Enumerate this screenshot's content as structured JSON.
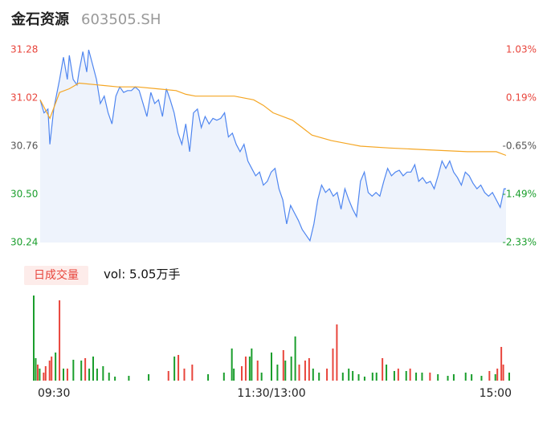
{
  "header": {
    "title": "金石资源",
    "code": "603505.SH"
  },
  "chart_data": [
    {
      "type": "line",
      "ylim": [
        30.24,
        31.28
      ],
      "yticks": [
        31.28,
        31.02,
        30.76,
        {
          "value": 30.5,
          "label": "30.50"
        },
        30.24
      ],
      "y2lim": [
        -2.33,
        1.03
      ],
      "y2ticks": [
        {
          "value": 1.03,
          "label": "1.03%"
        },
        {
          "value": 0.19,
          "label": "0.19%"
        },
        {
          "value": -0.65,
          "label": "-0.65%"
        },
        {
          "value": -1.49,
          "label": "-1.49%"
        },
        {
          "value": -2.33,
          "label": "-2.33%"
        }
      ],
      "tick_colors": [
        "#e8453c",
        "#e8453c",
        "#555555",
        "#1a9e2c",
        "#1a9e2c"
      ],
      "xlim": [
        0,
        240
      ],
      "area_color": "#eef3fc",
      "series": [
        {
          "color": "#4f86f0",
          "x": [
            0,
            2,
            4,
            5,
            7,
            10,
            12,
            14,
            15,
            17,
            19,
            20,
            22,
            24,
            25,
            27,
            29,
            31,
            33,
            35,
            37,
            39,
            41,
            43,
            45,
            47,
            49,
            51,
            53,
            55,
            57,
            59,
            61,
            63,
            65,
            67,
            69,
            71,
            73,
            75,
            77,
            79,
            81,
            83,
            85,
            87,
            89,
            91,
            93,
            95,
            97,
            99,
            101,
            103,
            105,
            107,
            109,
            111,
            113,
            115,
            117,
            119,
            121,
            123,
            125,
            127,
            129,
            131,
            133,
            135,
            137,
            139,
            141,
            143,
            145,
            147,
            149,
            151,
            153,
            155,
            157,
            159,
            161,
            163,
            165,
            167,
            169,
            171,
            173,
            175,
            177,
            179,
            181,
            183,
            185,
            187,
            189,
            191,
            193,
            195,
            197,
            199,
            201,
            203,
            205,
            207,
            209,
            211,
            213,
            215,
            217,
            219,
            221,
            223,
            225,
            227,
            229,
            231,
            233,
            235,
            237,
            239,
            240
          ],
          "values": [
            31.01,
            30.94,
            30.96,
            30.77,
            30.96,
            31.12,
            31.24,
            31.12,
            31.25,
            31.12,
            31.09,
            31.16,
            31.27,
            31.16,
            31.28,
            31.2,
            31.12,
            30.99,
            31.03,
            30.94,
            30.88,
            31.03,
            31.08,
            31.05,
            31.06,
            31.06,
            31.08,
            31.06,
            30.99,
            30.92,
            31.05,
            30.99,
            31.01,
            30.92,
            31.07,
            31.01,
            30.94,
            30.83,
            30.77,
            30.88,
            30.73,
            30.94,
            30.96,
            30.86,
            30.92,
            30.88,
            30.91,
            30.9,
            30.91,
            30.94,
            30.81,
            30.83,
            30.77,
            30.73,
            30.77,
            30.68,
            30.64,
            30.6,
            30.62,
            30.55,
            30.57,
            30.62,
            30.64,
            30.53,
            30.47,
            30.34,
            30.44,
            30.4,
            30.36,
            30.31,
            30.28,
            30.25,
            30.34,
            30.47,
            30.55,
            30.51,
            30.53,
            30.49,
            30.51,
            30.42,
            30.53,
            30.47,
            30.42,
            30.38,
            30.57,
            30.62,
            30.51,
            30.49,
            30.51,
            30.49,
            30.57,
            30.64,
            30.6,
            30.62,
            30.63,
            30.6,
            30.62,
            30.62,
            30.66,
            30.57,
            30.59,
            30.56,
            30.57,
            30.53,
            30.6,
            30.68,
            30.64,
            30.68,
            30.62,
            30.59,
            30.55,
            30.62,
            30.6,
            30.56,
            30.53,
            30.55,
            30.51,
            30.49,
            30.51,
            30.47,
            30.43,
            30.53,
            30.53
          ]
        },
        {
          "color": "#f5a623",
          "x": [
            0,
            5,
            10,
            15,
            20,
            30,
            40,
            50,
            60,
            70,
            75,
            80,
            100,
            110,
            115,
            120,
            130,
            135,
            140,
            150,
            160,
            165,
            180,
            200,
            220,
            235,
            240
          ],
          "values": [
            31.01,
            30.91,
            31.05,
            31.07,
            31.1,
            31.09,
            31.08,
            31.08,
            31.07,
            31.06,
            31.04,
            31.03,
            31.03,
            31.01,
            30.98,
            30.94,
            30.9,
            30.86,
            30.82,
            30.79,
            30.77,
            30.76,
            30.75,
            30.74,
            30.73,
            30.73,
            30.71
          ]
        }
      ]
    },
    {
      "type": "bar",
      "title": "日成交量",
      "subtitle": "vol: 5.05万手",
      "ylim": [
        0,
        2120
      ],
      "xlim": [
        0,
        240
      ],
      "xticks": [
        {
          "value": 0,
          "label": "09:30"
        },
        {
          "value": 120,
          "label": "11:30/13:00"
        },
        {
          "value": 240,
          "label": "15:00"
        }
      ],
      "series": [
        {
          "color": "#e8453c",
          "x": [
            2,
            5,
            6,
            8,
            9,
            13,
            17,
            26,
            68,
            73,
            76,
            80,
            105,
            107,
            113,
            126,
            134,
            137,
            139,
            148,
            151,
            153,
            176,
            184,
            190,
            200,
            230,
            234,
            236,
            237
          ],
          "values": [
            400,
            200,
            360,
            500,
            600,
            2000,
            300,
            560,
            240,
            640,
            300,
            400,
            360,
            600,
            500,
            760,
            400,
            500,
            560,
            300,
            800,
            1400,
            560,
            300,
            300,
            200,
            240,
            300,
            840,
            400
          ]
        },
        {
          "color": "#1a9e2c",
          "x": [
            0,
            1,
            3,
            11,
            15,
            20,
            24,
            28,
            30,
            32,
            35,
            38,
            41,
            48,
            58,
            71,
            88,
            96,
            100,
            101,
            109,
            110,
            115,
            120,
            123,
            127,
            130,
            132,
            141,
            144,
            156,
            159,
            161,
            164,
            167,
            171,
            173,
            178,
            182,
            188,
            193,
            196,
            204,
            209,
            212,
            218,
            221,
            226,
            233,
            240
          ],
          "values": [
            2120,
            560,
            300,
            700,
            300,
            520,
            500,
            300,
            600,
            300,
            360,
            200,
            100,
            120,
            160,
            600,
            160,
            200,
            800,
            300,
            600,
            800,
            200,
            700,
            400,
            500,
            600,
            1100,
            300,
            200,
            200,
            300,
            240,
            160,
            100,
            200,
            200,
            400,
            240,
            240,
            200,
            200,
            160,
            120,
            160,
            200,
            160,
            120,
            160,
            200
          ]
        }
      ]
    }
  ]
}
